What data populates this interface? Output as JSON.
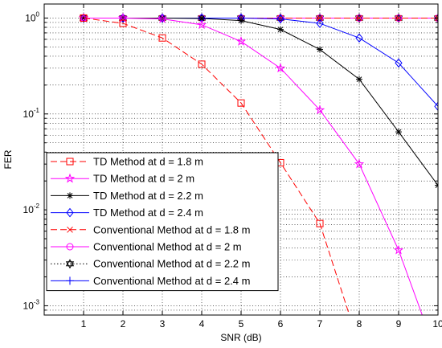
{
  "chart_data": {
    "type": "line",
    "title": "",
    "xlabel": "SNR (dB)",
    "ylabel": "FER",
    "xlim": [
      0,
      10
    ],
    "ylim": [
      0.0008,
      1.4
    ],
    "yscale": "log",
    "grid": true,
    "legend_position": "bottom-left",
    "x_ticks": [
      "1",
      "2",
      "3",
      "4",
      "5",
      "6",
      "7",
      "8",
      "9",
      "10"
    ],
    "y_ticks": [
      {
        "base": "10",
        "exp": "0"
      },
      {
        "base": "10",
        "exp": "-1"
      },
      {
        "base": "10",
        "exp": "-2"
      },
      {
        "base": "10",
        "exp": "-3"
      }
    ],
    "series": [
      {
        "name": "TD Method at d = 1.8 m",
        "color": "#ff0000",
        "dash": "dashed",
        "marker": "square",
        "x": [
          1,
          2,
          3,
          4,
          5,
          6,
          7,
          7.75
        ],
        "y": [
          1.0,
          0.88,
          0.62,
          0.33,
          0.13,
          0.031,
          0.0072,
          0.0008
        ]
      },
      {
        "name": "TD Method at d = 2 m",
        "color": "#ff00ff",
        "dash": "solid",
        "marker": "star",
        "x": [
          1,
          2,
          3,
          4,
          5,
          6,
          7,
          8,
          9,
          9.6
        ],
        "y": [
          1.0,
          1.0,
          0.98,
          0.85,
          0.57,
          0.3,
          0.11,
          0.03,
          0.0038,
          0.0008
        ]
      },
      {
        "name": "TD Method at d = 2.2 m",
        "color": "#000000",
        "dash": "solid",
        "marker": "asterisk",
        "x": [
          1,
          2,
          3,
          4,
          5,
          6,
          7,
          8,
          9,
          10
        ],
        "y": [
          1.0,
          1.0,
          1.0,
          0.99,
          0.94,
          0.76,
          0.47,
          0.23,
          0.065,
          0.018
        ]
      },
      {
        "name": "TD Method at d = 2.4 m",
        "color": "#0000ff",
        "dash": "solid",
        "marker": "diamond",
        "x": [
          1,
          2,
          3,
          4,
          5,
          6,
          7,
          8,
          9,
          10
        ],
        "y": [
          1.0,
          1.0,
          1.0,
          1.0,
          1.0,
          0.98,
          0.88,
          0.62,
          0.34,
          0.12
        ]
      },
      {
        "name": "Conventional Method at d = 1.8 m",
        "color": "#ff0000",
        "dash": "dashed",
        "marker": "x",
        "x": [
          1,
          2,
          3,
          4,
          5,
          6,
          7,
          8,
          9,
          10
        ],
        "y": [
          1,
          1,
          1,
          1,
          1,
          1,
          1,
          1,
          1,
          1
        ]
      },
      {
        "name": "Conventional Method at d = 2 m",
        "color": "#ff00ff",
        "dash": "solid",
        "marker": "circle",
        "x": [
          1,
          2,
          3,
          4,
          5,
          6,
          7,
          8,
          9,
          10
        ],
        "y": [
          1,
          1,
          1,
          1,
          1,
          1,
          1,
          1,
          1,
          1
        ]
      },
      {
        "name": "Conventional Method at d = 2.2 m",
        "color": "#000000",
        "dash": "dotted",
        "marker": "hexagram",
        "x": [
          1,
          2,
          3,
          4,
          5,
          6,
          7,
          8,
          9,
          10
        ],
        "y": [
          1,
          1,
          1,
          1,
          1,
          1,
          1,
          1,
          1,
          1
        ]
      },
      {
        "name": "Conventional Method at d = 2.4 m",
        "color": "#0000ff",
        "dash": "solid",
        "marker": "plus",
        "x": [
          1,
          2,
          3,
          4,
          5,
          6,
          7,
          8,
          9,
          10
        ],
        "y": [
          1,
          1,
          1,
          1,
          1,
          1,
          1,
          1,
          1,
          1
        ]
      }
    ]
  }
}
